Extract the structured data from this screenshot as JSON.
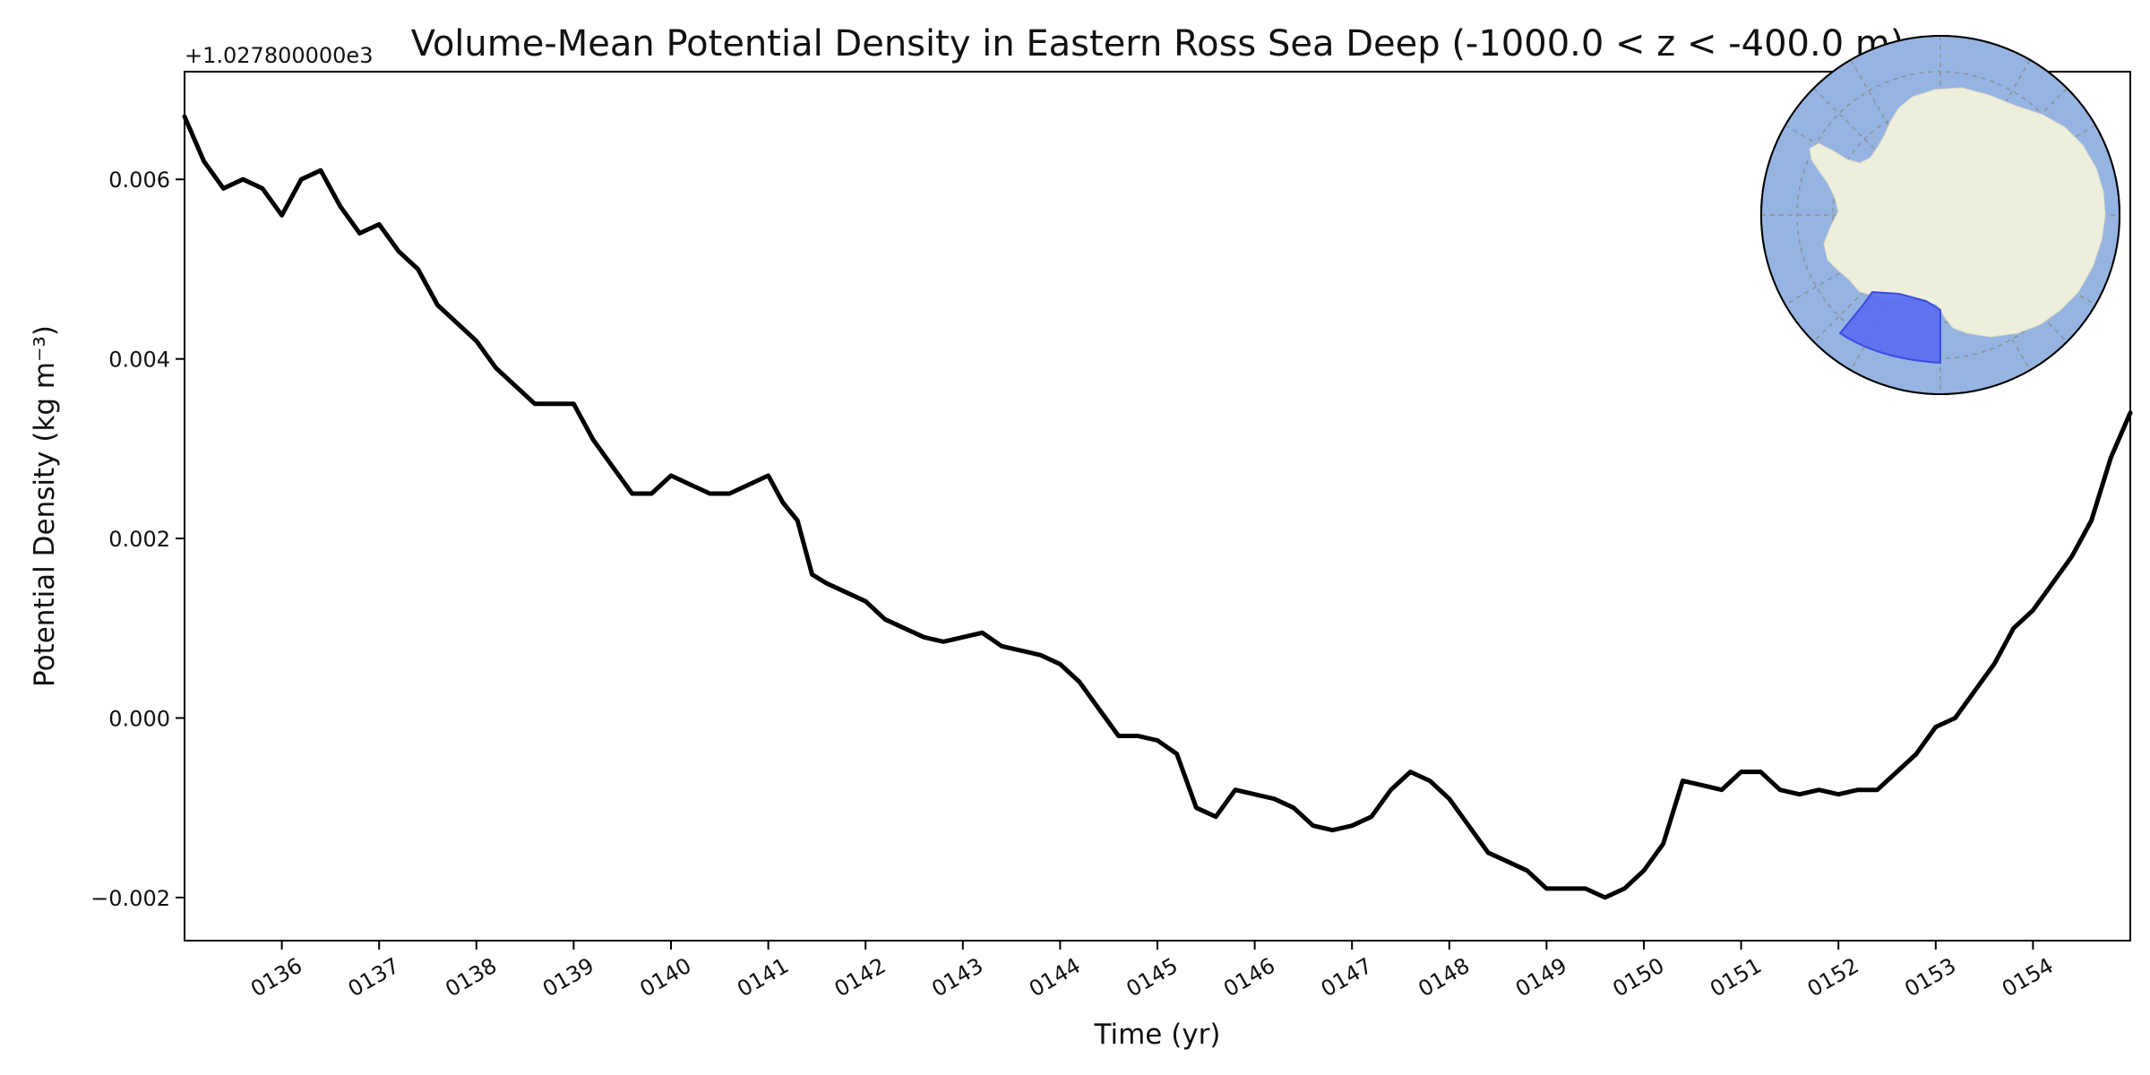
{
  "chart_data": {
    "type": "line",
    "title": "Volume-Mean Potential Density in Eastern Ross Sea Deep (-1000.0 < z < -400.0 m)",
    "xlabel": "Time (yr)",
    "ylabel": "Potential Density (kg m⁻³)",
    "y_offset_label": "+1.027800000e3",
    "xlim": [
      135.0,
      155.0
    ],
    "ylim": [
      -0.00248,
      0.0072
    ],
    "x_ticks": [
      {
        "value": 136,
        "label": "0136"
      },
      {
        "value": 137,
        "label": "0137"
      },
      {
        "value": 138,
        "label": "0138"
      },
      {
        "value": 139,
        "label": "0139"
      },
      {
        "value": 140,
        "label": "0140"
      },
      {
        "value": 141,
        "label": "0141"
      },
      {
        "value": 142,
        "label": "0142"
      },
      {
        "value": 143,
        "label": "0143"
      },
      {
        "value": 144,
        "label": "0144"
      },
      {
        "value": 145,
        "label": "0145"
      },
      {
        "value": 146,
        "label": "0146"
      },
      {
        "value": 147,
        "label": "0147"
      },
      {
        "value": 148,
        "label": "0148"
      },
      {
        "value": 149,
        "label": "0149"
      },
      {
        "value": 150,
        "label": "0150"
      },
      {
        "value": 151,
        "label": "0151"
      },
      {
        "value": 152,
        "label": "0152"
      },
      {
        "value": 153,
        "label": "0153"
      },
      {
        "value": 154,
        "label": "0154"
      }
    ],
    "y_ticks": [
      {
        "value": -0.002,
        "label": "−0.002"
      },
      {
        "value": 0.0,
        "label": "0.000"
      },
      {
        "value": 0.002,
        "label": "0.002"
      },
      {
        "value": 0.004,
        "label": "0.004"
      },
      {
        "value": 0.006,
        "label": "0.006"
      }
    ],
    "grid": false,
    "series": [
      {
        "color": "#000000",
        "x": [
          135.0,
          135.2,
          135.4,
          135.6,
          135.8,
          136.0,
          136.2,
          136.4,
          136.6,
          136.8,
          137.0,
          137.2,
          137.4,
          137.6,
          137.8,
          138.0,
          138.2,
          138.4,
          138.6,
          138.8,
          139.0,
          139.2,
          139.4,
          139.6,
          139.8,
          140.0,
          140.2,
          140.4,
          140.6,
          140.8,
          141.0,
          141.15,
          141.3,
          141.45,
          141.6,
          141.8,
          142.0,
          142.2,
          142.4,
          142.6,
          142.8,
          143.0,
          143.2,
          143.4,
          143.6,
          143.8,
          144.0,
          144.2,
          144.4,
          144.6,
          144.8,
          145.0,
          145.2,
          145.4,
          145.6,
          145.8,
          146.0,
          146.2,
          146.4,
          146.6,
          146.8,
          147.0,
          147.2,
          147.4,
          147.6,
          147.8,
          148.0,
          148.2,
          148.4,
          148.6,
          148.8,
          149.0,
          149.2,
          149.4,
          149.6,
          149.8,
          150.0,
          150.2,
          150.4,
          150.6,
          150.8,
          151.0,
          151.2,
          151.4,
          151.6,
          151.8,
          152.0,
          152.2,
          152.4,
          152.6,
          152.8,
          153.0,
          153.2,
          153.4,
          153.6,
          153.8,
          154.0,
          154.2,
          154.4,
          154.6,
          154.8,
          155.0
        ],
        "y": [
          0.0067,
          0.0062,
          0.0059,
          0.006,
          0.0059,
          0.0056,
          0.006,
          0.0061,
          0.0057,
          0.0054,
          0.0055,
          0.0052,
          0.005,
          0.0046,
          0.0044,
          0.0042,
          0.0039,
          0.0037,
          0.0035,
          0.0035,
          0.0035,
          0.0031,
          0.0028,
          0.0025,
          0.0025,
          0.0027,
          0.0026,
          0.0025,
          0.0025,
          0.0026,
          0.0027,
          0.0024,
          0.0022,
          0.0016,
          0.0015,
          0.0014,
          0.0013,
          0.0011,
          0.001,
          0.0009,
          0.00085,
          0.0009,
          0.00095,
          0.0008,
          0.00075,
          0.0007,
          0.0006,
          0.0004,
          0.0001,
          -0.0002,
          -0.0002,
          -0.00025,
          -0.0004,
          -0.001,
          -0.0011,
          -0.0008,
          -0.00085,
          -0.0009,
          -0.001,
          -0.0012,
          -0.00125,
          -0.0012,
          -0.0011,
          -0.0008,
          -0.0006,
          -0.0007,
          -0.0009,
          -0.0012,
          -0.0015,
          -0.0016,
          -0.0017,
          -0.0019,
          -0.0019,
          -0.0019,
          -0.002,
          -0.0019,
          -0.0017,
          -0.0014,
          -0.0007,
          -0.00075,
          -0.0008,
          -0.0006,
          -0.0006,
          -0.0008,
          -0.00085,
          -0.0008,
          -0.00085,
          -0.0008,
          -0.0008,
          -0.0006,
          -0.0004,
          -0.0001,
          0.0,
          0.0003,
          0.0006,
          0.001,
          0.0012,
          0.0015,
          0.0018,
          0.0022,
          0.0029,
          0.0034
        ]
      }
    ]
  },
  "inset_map": {
    "ocean_color": "#96b4e1",
    "land_color": "#eeeedc",
    "region_color": "#5a6cf0"
  }
}
